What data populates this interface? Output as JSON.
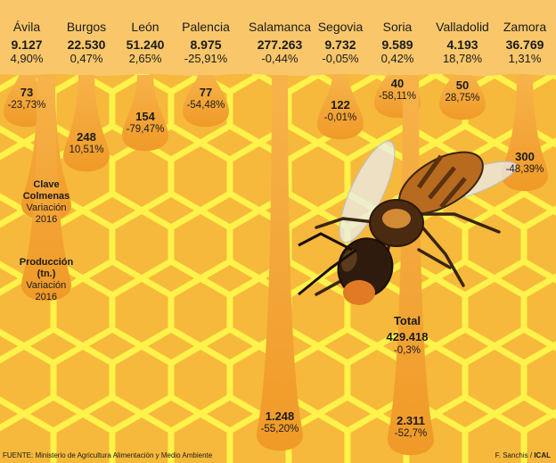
{
  "chart_data": {
    "type": "table",
    "provinces": [
      {
        "name": "Ávila",
        "colmenas": "9.127",
        "colmenas_var": "4,90%",
        "produccion": "73",
        "produccion_var": "-23,73%"
      },
      {
        "name": "Burgos",
        "colmenas": "22.530",
        "colmenas_var": "0,47%",
        "produccion": "248",
        "produccion_var": "10,51%"
      },
      {
        "name": "León",
        "colmenas": "51.240",
        "colmenas_var": "2,65%",
        "produccion": "154",
        "produccion_var": "-79,47%"
      },
      {
        "name": "Palencia",
        "colmenas": "8.975",
        "colmenas_var": "-25,91%",
        "produccion": "77",
        "produccion_var": "-54,48%"
      },
      {
        "name": "Salamanca",
        "colmenas": "277.263",
        "colmenas_var": "-0,44%",
        "produccion": "1.248",
        "produccion_var": "-55,20%"
      },
      {
        "name": "Segovia",
        "colmenas": "9.732",
        "colmenas_var": "-0,05%",
        "produccion": "122",
        "produccion_var": "-0,01%"
      },
      {
        "name": "Soria",
        "colmenas": "9.589",
        "colmenas_var": "0,42%",
        "produccion": "40",
        "produccion_var": "-58,11%"
      },
      {
        "name": "Valladolid",
        "colmenas": "4.193",
        "colmenas_var": "18,78%",
        "produccion": "50",
        "produccion_var": "28,75%"
      },
      {
        "name": "Zamora",
        "colmenas": "36.769",
        "colmenas_var": "1,31%",
        "produccion": "300",
        "produccion_var": "-48,39%"
      }
    ],
    "total": {
      "label": "Total",
      "colmenas": "429.418",
      "colmenas_var": "-0,3%",
      "produccion": "2.311",
      "produccion_var": "-52,7%"
    },
    "legend": {
      "hives_title": "Clave",
      "hives_name": "Colmenas",
      "hives_var": "Variación 2016",
      "prod_title": "Producción",
      "prod_unit": "(tn.)",
      "prod_var": "Variación 2016"
    }
  },
  "footer": {
    "source": "FUENTE: Ministerio de Agricultura Alimentación y Medio Ambiente",
    "credit_author": "F. Sanchis / ",
    "credit_agency": "ICAL"
  },
  "colors": {
    "background": "#f6b93b",
    "honeycomb_lines": "#fff24a",
    "honey_drip": "#f4a62e",
    "honey_header": "#f9c76a"
  }
}
